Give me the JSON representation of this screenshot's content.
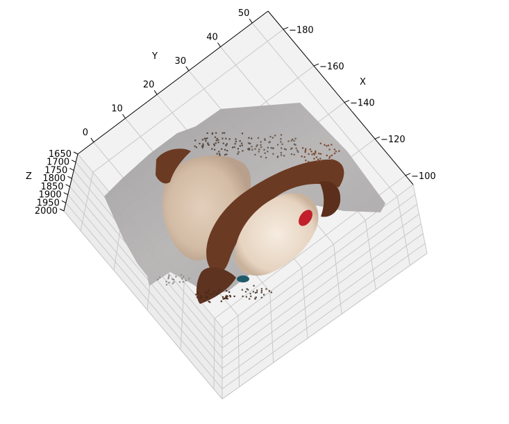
{
  "chart_data": {
    "type": "scatter3d",
    "title": "",
    "axes": {
      "x": {
        "label": "X",
        "ticks": [
          -180,
          -160,
          -140,
          -120,
          -100
        ],
        "tick_labels": [
          "−180",
          "−160",
          "−140",
          "−120",
          "−100"
        ],
        "range": [
          -190,
          -95
        ]
      },
      "y": {
        "label": "Y",
        "ticks": [
          0,
          10,
          20,
          30,
          40,
          50
        ],
        "tick_labels": [
          "0",
          "10",
          "20",
          "30",
          "40",
          "50"
        ],
        "range": [
          -5,
          55
        ]
      },
      "z": {
        "label": "Z",
        "ticks": [
          1650,
          1700,
          1750,
          1800,
          1850,
          1900,
          1950,
          2000
        ],
        "tick_labels": [
          "1650",
          "1700",
          "1750",
          "1800",
          "1850",
          "1900",
          "1950",
          "2000"
        ],
        "range": [
          1650,
          2000
        ],
        "inverted": true
      }
    },
    "grid": true,
    "pane_color": "#f2f2f2",
    "point_cloud": {
      "description_colors": [
        "#a9a9ab",
        "#d8c2ad",
        "#6b3a22",
        "#f1e4d6",
        "#c21f2b",
        "#1f5a6b"
      ],
      "regions": [
        {
          "name": "background",
          "color": "#a9a9ab"
        },
        {
          "name": "face",
          "color": "#d8c2ad"
        },
        {
          "name": "hair",
          "color": "#6b3a22"
        },
        {
          "name": "object-light",
          "color": "#f1e4d6"
        },
        {
          "name": "object-red",
          "color": "#c21f2b"
        },
        {
          "name": "object-teal",
          "color": "#1f5a6b"
        }
      ]
    }
  }
}
